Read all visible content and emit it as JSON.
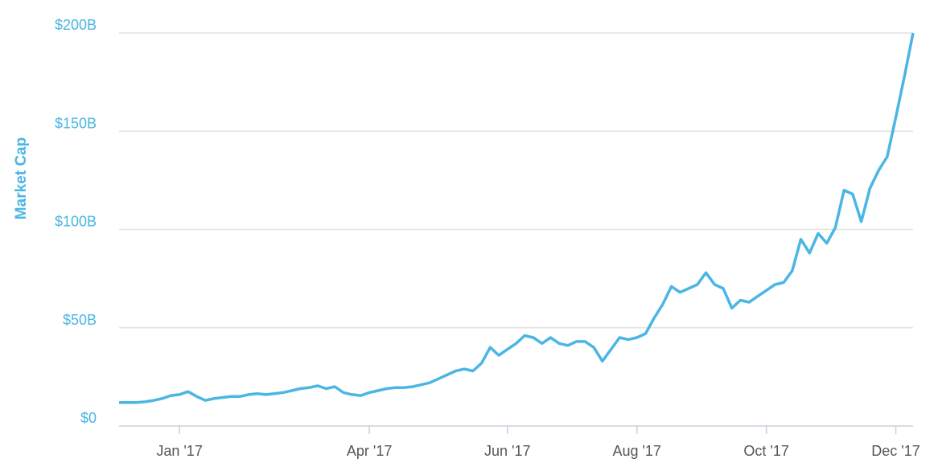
{
  "chart_data": {
    "type": "line",
    "y_label": "Market Cap",
    "categories": [
      null,
      null,
      null,
      null,
      null,
      null,
      null,
      "Jan '17",
      null,
      null,
      null,
      null,
      null,
      null,
      null,
      null,
      null,
      null,
      null,
      null,
      null,
      null,
      null,
      null,
      null,
      null,
      null,
      null,
      null,
      "Apr '17",
      null,
      null,
      null,
      null,
      null,
      null,
      null,
      null,
      null,
      null,
      null,
      null,
      null,
      null,
      null,
      "Jun '17",
      null,
      null,
      null,
      null,
      null,
      null,
      null,
      null,
      null,
      null,
      null,
      null,
      null,
      null,
      "Aug '17",
      null,
      null,
      null,
      null,
      null,
      null,
      null,
      null,
      null,
      null,
      null,
      null,
      null,
      null,
      "Oct '17",
      null,
      null,
      null,
      null,
      null,
      null,
      null,
      null,
      null,
      null,
      null,
      null,
      null,
      null,
      "Dec '17",
      null,
      null
    ],
    "series": [
      {
        "name": "Market Cap",
        "color": "#4bb6e4",
        "values": [
          12,
          12,
          12,
          12.3,
          13,
          14,
          15.5,
          16,
          17.5,
          15,
          13,
          14,
          14.5,
          15,
          15,
          16,
          16.5,
          16,
          16.5,
          17,
          18,
          19,
          19.5,
          20.5,
          19,
          20,
          17,
          16,
          15.5,
          17,
          18,
          19,
          19.5,
          19.5,
          20,
          21,
          22,
          24,
          26,
          28,
          29,
          28,
          32,
          40,
          36,
          39,
          42,
          46,
          45,
          42,
          45,
          42,
          41,
          43,
          43,
          40,
          33,
          39,
          45,
          44,
          45,
          47,
          55,
          62,
          71,
          68,
          70,
          72,
          78,
          72,
          70,
          60,
          64,
          63,
          66,
          69,
          72,
          73,
          79,
          95,
          88,
          98,
          93,
          101,
          120,
          118,
          104,
          121,
          130,
          137,
          157,
          178,
          200
        ]
      }
    ],
    "ylim": [
      0,
      200
    ],
    "yticks": [
      {
        "value": 0,
        "label": "$0"
      },
      {
        "value": 50,
        "label": "$50B"
      },
      {
        "value": 100,
        "label": "$100B"
      },
      {
        "value": 150,
        "label": "$150B"
      },
      {
        "value": 200,
        "label": "$200B"
      }
    ],
    "grid": true
  }
}
